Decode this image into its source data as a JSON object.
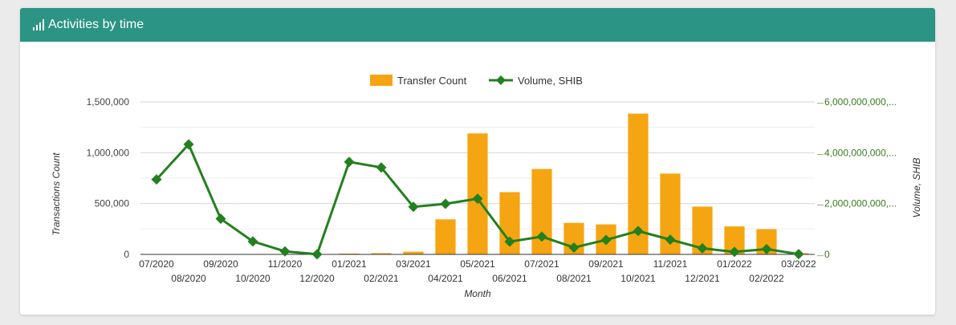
{
  "header": {
    "title": "Activities by time",
    "icon": "bar-chart-icon"
  },
  "colors": {
    "header": "#2b9484",
    "bars": "#f5a511",
    "line": "#23801e",
    "right_axis": "#3a7a1e"
  },
  "chart_data": {
    "type": "bar",
    "x_label": "Month",
    "categories": [
      "07/2020",
      "08/2020",
      "09/2020",
      "10/2020",
      "11/2020",
      "12/2020",
      "01/2021",
      "02/2021",
      "03/2021",
      "04/2021",
      "05/2021",
      "06/2021",
      "07/2021",
      "08/2021",
      "09/2021",
      "10/2021",
      "11/2021",
      "12/2021",
      "01/2022",
      "02/2022",
      "03/2022"
    ],
    "left_axis": {
      "label": "Transactions Count",
      "range": [
        0,
        1500000
      ],
      "ticks": [
        "0",
        "500,000",
        "1,000,000",
        "1,500,000"
      ]
    },
    "right_axis": {
      "label": "Volume, SHIB",
      "range": [
        0,
        6000000000
      ],
      "ticks": [
        "0",
        "2,000,000,000,...",
        "4,000,000,000,...",
        "6,000,000,000,..."
      ]
    },
    "legend": {
      "position": "top"
    },
    "series": [
      {
        "name": "Transfer Count",
        "type": "bar",
        "axis": "left",
        "values": [
          0,
          0,
          0,
          0,
          0,
          0,
          8000,
          12000,
          27000,
          345000,
          1190000,
          612000,
          840000,
          310000,
          295000,
          1385000,
          795000,
          470000,
          275000,
          248000,
          12000
        ]
      },
      {
        "name": "Volume, SHIB",
        "type": "line",
        "axis": "right",
        "values": [
          2950000000,
          4330000000,
          1400000000,
          510000000,
          120000000,
          5000000,
          3640000000,
          3420000000,
          1870000000,
          1990000000,
          2190000000,
          500000000,
          700000000,
          270000000,
          570000000,
          920000000,
          580000000,
          240000000,
          100000000,
          210000000,
          10000000
        ]
      }
    ]
  }
}
